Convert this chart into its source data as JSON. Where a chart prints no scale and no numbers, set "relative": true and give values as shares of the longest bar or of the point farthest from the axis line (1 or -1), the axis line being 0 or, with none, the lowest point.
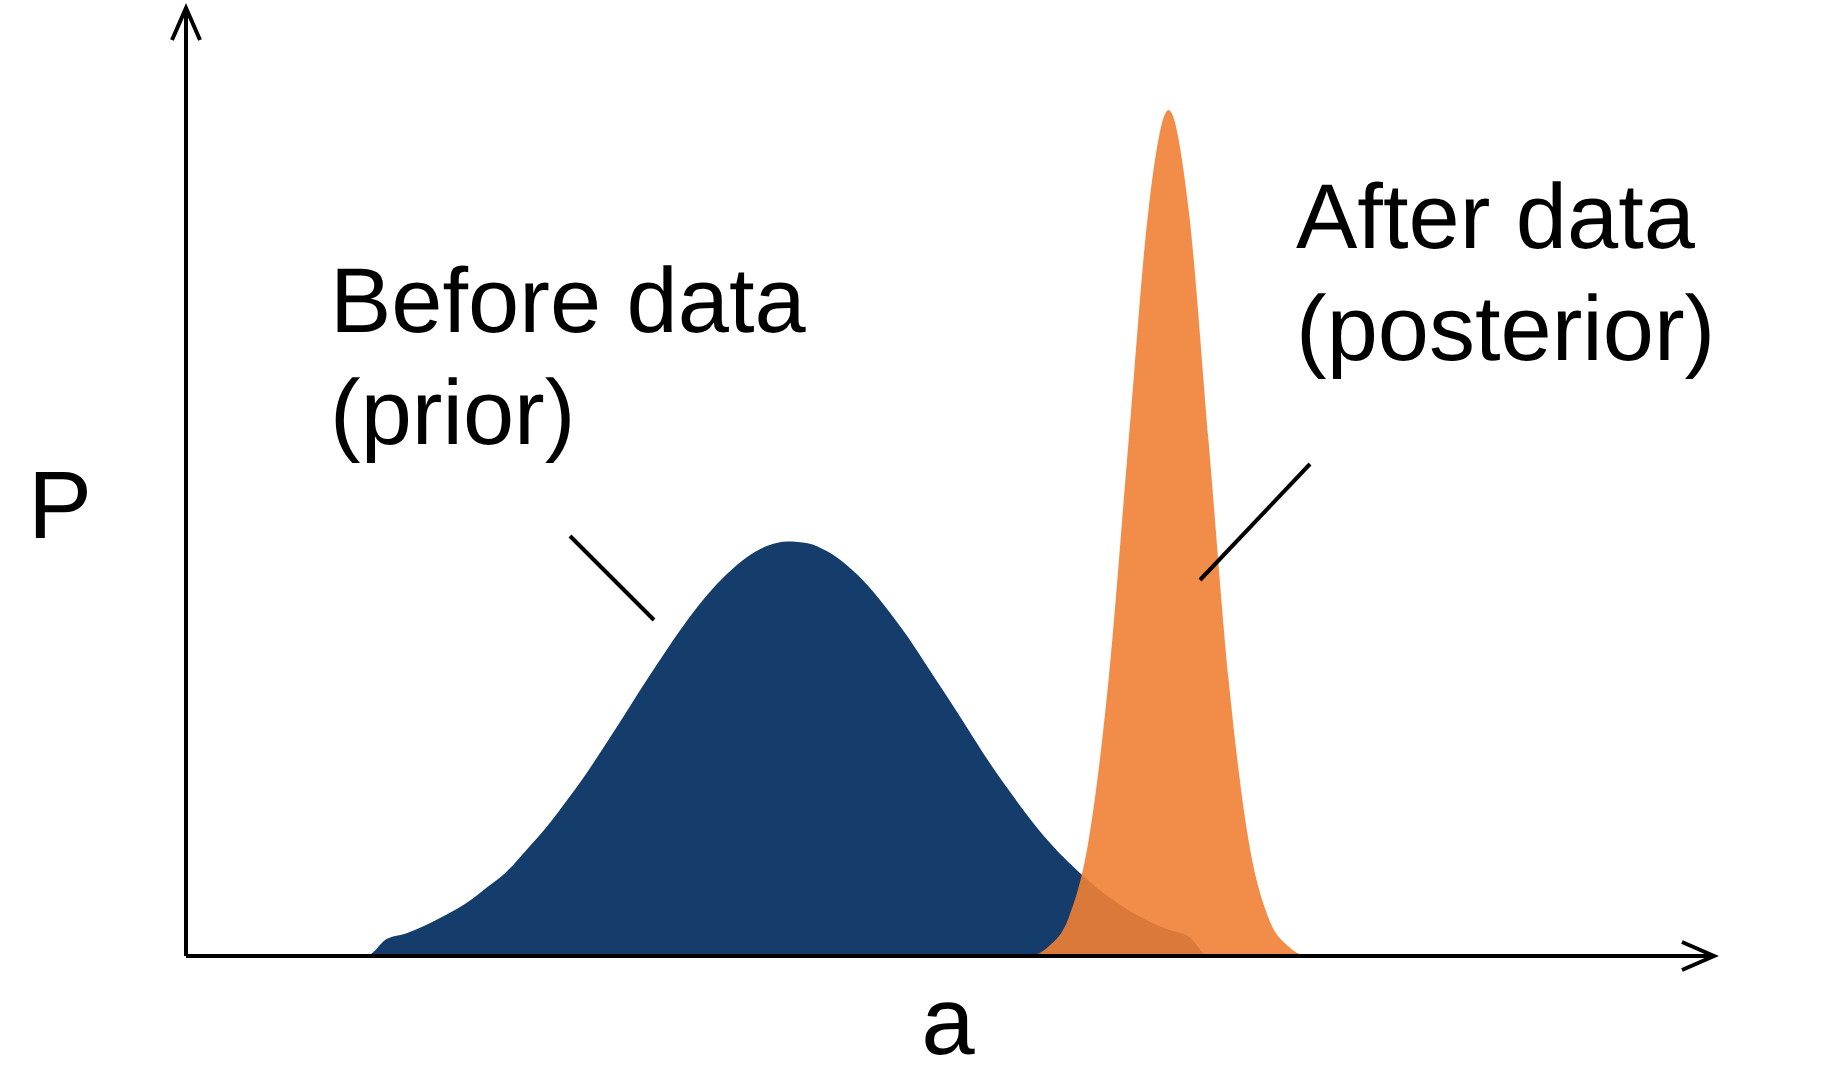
{
  "chart_data": {
    "type": "area",
    "relative": true,
    "xlabel": "a",
    "ylabel": "P",
    "annotations": [
      "Before data\n(prior)",
      "After data\n(posterior)"
    ],
    "categories": [
      null,
      null,
      null,
      null,
      null,
      null,
      null,
      null,
      null,
      null,
      null,
      null,
      null,
      null,
      null,
      null,
      null,
      null,
      null,
      null,
      null,
      null,
      null,
      null,
      null,
      null,
      null,
      null,
      null,
      null,
      null,
      null,
      null,
      null,
      null,
      null,
      null,
      null,
      null,
      null,
      null,
      null,
      null,
      null,
      null,
      null,
      null,
      null,
      null,
      null,
      null,
      null,
      null,
      null,
      null,
      null,
      null,
      null,
      null,
      null,
      null,
      null,
      null,
      null,
      null,
      null,
      null,
      null,
      null,
      null,
      null,
      null,
      null,
      null,
      null,
      null,
      null
    ],
    "series": [
      {
        "color": "#143d6b",
        "values": [
          0,
          0,
          0,
          0,
          0,
          0,
          0,
          0,
          0,
          0,
          0.02,
          0.027,
          0.037,
          0.049,
          0.063,
          0.081,
          0.1,
          0.126,
          0.153,
          0.184,
          0.217,
          0.253,
          0.29,
          0.327,
          0.363,
          0.397,
          0.427,
          0.452,
          0.472,
          0.485,
          0.49,
          0.488,
          0.478,
          0.461,
          0.438,
          0.409,
          0.377,
          0.341,
          0.305,
          0.268,
          0.231,
          0.197,
          0.165,
          0.136,
          0.111,
          0.089,
          0.07,
          0.054,
          0.041,
          0.031,
          0.023,
          0,
          0,
          0,
          0,
          0,
          0,
          0,
          0,
          0,
          0,
          0,
          0,
          0,
          0,
          0,
          0,
          0,
          0,
          0,
          0,
          0,
          0,
          0,
          0,
          0,
          0
        ]
      },
      {
        "color": "#f07f35",
        "values": [
          0,
          0,
          0,
          0,
          0,
          0,
          0,
          0,
          0,
          0,
          0,
          0,
          0,
          0,
          0,
          0,
          0,
          0,
          0,
          0,
          0,
          0,
          0,
          0,
          0,
          0,
          0,
          0,
          0,
          0,
          0,
          0,
          0,
          0,
          0,
          0,
          0,
          0,
          0,
          0,
          0,
          0,
          0,
          0.011,
          0.044,
          0.135,
          0.325,
          0.607,
          0.882,
          1,
          0.882,
          0.607,
          0.325,
          0.135,
          0.044,
          0.011,
          0,
          0,
          0,
          0,
          0,
          0,
          0,
          0,
          0,
          0,
          0,
          0,
          0,
          0,
          0,
          0,
          0,
          0,
          0,
          0,
          0
        ]
      }
    ]
  }
}
